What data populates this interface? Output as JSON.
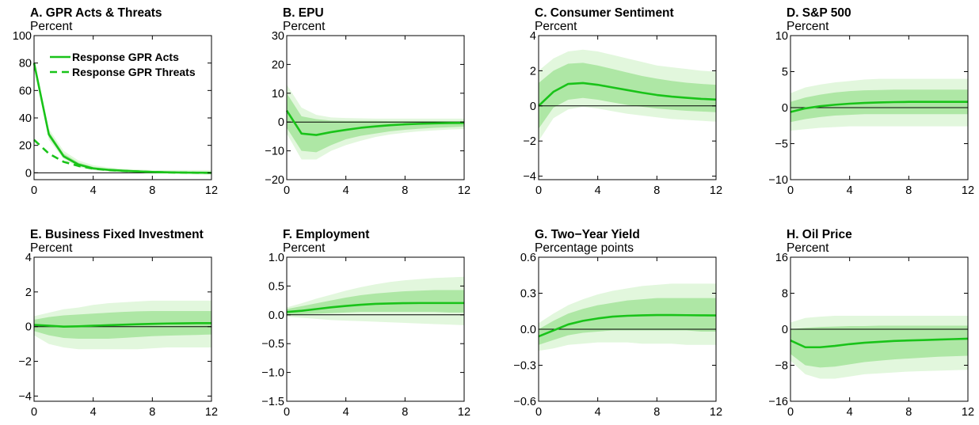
{
  "colors": {
    "line": "#19c319",
    "band_outer": "#e2f7dd",
    "band_inner": "#aee7a5",
    "axis": "#000000",
    "zero_line": "#000000"
  },
  "chart_data": [
    {
      "type": "line",
      "title": "A. GPR Acts & Threats",
      "subtitle": "Percent",
      "x": [
        0,
        1,
        2,
        3,
        4,
        5,
        6,
        7,
        8,
        9,
        10,
        11,
        12
      ],
      "xticks": [
        0,
        4,
        8,
        12
      ],
      "xlim": [
        0,
        12
      ],
      "ylim": [
        -5,
        100
      ],
      "yticks": [
        0,
        20,
        40,
        60,
        80,
        100
      ],
      "ytick_labels": [
        "0",
        "20",
        "40",
        "60",
        "80",
        "100"
      ],
      "legend": {
        "placement": "top-left",
        "entries": [
          "Response GPR Acts",
          "Response GPR Threats"
        ]
      },
      "series": [
        {
          "name": "Response GPR Acts",
          "style": "solid",
          "values": [
            80,
            28,
            12,
            6,
            3.2,
            2.2,
            1.5,
            1,
            0.6,
            0.4,
            0.2,
            0.1,
            0
          ]
        },
        {
          "name": "Response GPR Threats",
          "style": "dashed",
          "values": [
            24,
            14,
            8,
            5,
            3,
            2,
            1.4,
            1,
            0.6,
            0.3,
            0.2,
            0,
            0
          ]
        }
      ],
      "band_outer": {
        "lower": [
          80,
          24,
          10,
          4,
          2,
          1,
          0.5,
          0,
          -0.5,
          -0.8,
          -1,
          -1.2,
          -1.5
        ],
        "upper": [
          80,
          32,
          16,
          9,
          5.5,
          4,
          3,
          2.5,
          2,
          2,
          2,
          2,
          2
        ]
      },
      "band_inner": {
        "lower": [
          80,
          26,
          11,
          5,
          2.6,
          1.6,
          1,
          0.5,
          0.2,
          0,
          -0.2,
          -0.4,
          -0.6
        ],
        "upper": [
          80,
          30,
          14,
          7.5,
          4.2,
          3,
          2.2,
          1.6,
          1.2,
          1,
          0.8,
          0.7,
          0.6
        ]
      }
    },
    {
      "type": "line",
      "title": "B. EPU",
      "subtitle": "Percent",
      "x": [
        0,
        1,
        2,
        3,
        4,
        5,
        6,
        7,
        8,
        9,
        10,
        11,
        12
      ],
      "xticks": [
        0,
        4,
        8,
        12
      ],
      "xlim": [
        0,
        12
      ],
      "ylim": [
        -20,
        30
      ],
      "yticks": [
        -20,
        -10,
        0,
        10,
        20,
        30
      ],
      "ytick_labels": [
        "−20",
        "−10",
        "0",
        "10",
        "20",
        "30"
      ],
      "series": [
        {
          "name": "",
          "style": "solid",
          "values": [
            4,
            -4,
            -4.5,
            -3.5,
            -2.7,
            -2,
            -1.5,
            -1.1,
            -0.8,
            -0.6,
            -0.45,
            -0.35,
            -0.3
          ]
        }
      ],
      "band_outer": {
        "lower": [
          -4,
          -13,
          -13,
          -10,
          -8,
          -6.5,
          -5.2,
          -4.3,
          -3.7,
          -3.2,
          -2.9,
          -2.6,
          -2.4
        ],
        "upper": [
          13,
          5,
          2.5,
          1.6,
          1.4,
          1.3,
          1.2,
          1.2,
          1.2,
          1.2,
          1.2,
          1.2,
          1.2
        ]
      },
      "band_inner": {
        "lower": [
          -2,
          -10,
          -10.5,
          -8,
          -6,
          -4.8,
          -4,
          -3.2,
          -2.7,
          -2.3,
          -2,
          -1.8,
          -1.6
        ],
        "upper": [
          10,
          2,
          1,
          0.5,
          0.4,
          0.4,
          0.4,
          0.3,
          0.3,
          0.3,
          0.3,
          0.3,
          0.3
        ]
      }
    },
    {
      "type": "line",
      "title": "C. Consumer Sentiment",
      "subtitle": "Percent",
      "x": [
        0,
        1,
        2,
        3,
        4,
        5,
        6,
        7,
        8,
        9,
        10,
        11,
        12
      ],
      "xticks": [
        0,
        4,
        8,
        12
      ],
      "xlim": [
        0,
        12
      ],
      "ylim": [
        -4.2,
        4
      ],
      "yticks": [
        -4,
        -2,
        0,
        2,
        4
      ],
      "ytick_labels": [
        "−4",
        "−2",
        "0",
        "2",
        "4"
      ],
      "series": [
        {
          "name": "",
          "style": "solid",
          "values": [
            0,
            0.8,
            1.25,
            1.3,
            1.2,
            1.05,
            0.9,
            0.75,
            0.62,
            0.53,
            0.46,
            0.4,
            0.36
          ]
        }
      ],
      "band_outer": {
        "lower": [
          -2,
          -0.7,
          -0.2,
          -0.05,
          -0.15,
          -0.3,
          -0.45,
          -0.55,
          -0.65,
          -0.75,
          -0.8,
          -0.85,
          -0.9
        ],
        "upper": [
          2,
          2.7,
          3.1,
          3.2,
          3.1,
          2.9,
          2.7,
          2.5,
          2.3,
          2.2,
          2.1,
          2,
          1.95
        ]
      },
      "band_inner": {
        "lower": [
          -1.3,
          -0.1,
          0.35,
          0.45,
          0.35,
          0.2,
          0.05,
          -0.05,
          -0.15,
          -0.22,
          -0.28,
          -0.32,
          -0.36
        ],
        "upper": [
          1.3,
          2,
          2.4,
          2.45,
          2.3,
          2.1,
          1.9,
          1.7,
          1.55,
          1.42,
          1.32,
          1.25,
          1.2
        ]
      }
    },
    {
      "type": "line",
      "title": "D. S&P 500",
      "subtitle": "Percent",
      "x": [
        0,
        1,
        2,
        3,
        4,
        5,
        6,
        7,
        8,
        9,
        10,
        11,
        12
      ],
      "xticks": [
        0,
        4,
        8,
        12
      ],
      "xlim": [
        0,
        12
      ],
      "ylim": [
        -10,
        10
      ],
      "yticks": [
        -10,
        -5,
        0,
        5,
        10
      ],
      "ytick_labels": [
        "−10",
        "−5",
        "0",
        "5",
        "10"
      ],
      "series": [
        {
          "name": "",
          "style": "solid",
          "values": [
            -0.6,
            -0.1,
            0.2,
            0.4,
            0.55,
            0.65,
            0.72,
            0.77,
            0.8,
            0.8,
            0.8,
            0.8,
            0.8
          ]
        }
      ],
      "band_outer": {
        "lower": [
          -3.2,
          -3,
          -2.8,
          -2.7,
          -2.6,
          -2.6,
          -2.6,
          -2.6,
          -2.6,
          -2.6,
          -2.6,
          -2.6,
          -2.6
        ],
        "upper": [
          2,
          2.8,
          3.2,
          3.5,
          3.7,
          3.9,
          4,
          4,
          4,
          4,
          4,
          4,
          4
        ]
      },
      "band_inner": {
        "lower": [
          -2,
          -1.6,
          -1.3,
          -1.1,
          -1,
          -0.9,
          -0.9,
          -0.9,
          -0.9,
          -0.9,
          -0.9,
          -0.9,
          -0.9
        ],
        "upper": [
          0.8,
          1.4,
          1.8,
          2.1,
          2.3,
          2.4,
          2.45,
          2.5,
          2.5,
          2.5,
          2.5,
          2.5,
          2.5
        ]
      }
    },
    {
      "type": "line",
      "title": "E. Business Fixed Investment",
      "subtitle": "Percent",
      "x": [
        0,
        1,
        2,
        3,
        4,
        5,
        6,
        7,
        8,
        9,
        10,
        11,
        12
      ],
      "xticks": [
        0,
        4,
        8,
        12
      ],
      "xlim": [
        0,
        12
      ],
      "ylim": [
        -4.3,
        4
      ],
      "yticks": [
        -4,
        -2,
        0,
        2,
        4
      ],
      "ytick_labels": [
        "−4",
        "−2",
        "0",
        "2",
        "4"
      ],
      "series": [
        {
          "name": "",
          "style": "solid",
          "values": [
            0.1,
            0.05,
            0,
            0.02,
            0.05,
            0.08,
            0.11,
            0.14,
            0.16,
            0.18,
            0.19,
            0.2,
            0.2
          ]
        }
      ],
      "band_outer": {
        "lower": [
          -0.5,
          -1,
          -1.2,
          -1.3,
          -1.3,
          -1.3,
          -1.3,
          -1.3,
          -1.25,
          -1.2,
          -1.2,
          -1.2,
          -1.2
        ],
        "upper": [
          0.6,
          0.8,
          1,
          1.1,
          1.25,
          1.35,
          1.4,
          1.45,
          1.5,
          1.5,
          1.5,
          1.5,
          1.5
        ]
      },
      "band_inner": {
        "lower": [
          -0.25,
          -0.5,
          -0.65,
          -0.7,
          -0.7,
          -0.7,
          -0.65,
          -0.6,
          -0.55,
          -0.52,
          -0.5,
          -0.48,
          -0.45
        ]
      },
      "band_inner_upper": [
        0.4,
        0.55,
        0.65,
        0.7,
        0.75,
        0.8,
        0.85,
        0.88,
        0.9,
        0.9,
        0.9,
        0.9,
        0.9
      ]
    },
    {
      "type": "line",
      "title": "F. Employment",
      "subtitle": "Percent",
      "x": [
        0,
        1,
        2,
        3,
        4,
        5,
        6,
        7,
        8,
        9,
        10,
        11,
        12
      ],
      "xticks": [
        0,
        4,
        8,
        12
      ],
      "xlim": [
        0,
        12
      ],
      "ylim": [
        -1.5,
        1.0
      ],
      "yticks": [
        -1.5,
        -1.0,
        -0.5,
        0.0,
        0.5,
        1.0
      ],
      "ytick_labels": [
        "−1.5",
        "−1.0",
        "−0.5",
        "0.0",
        "0.5",
        "1.0"
      ],
      "series": [
        {
          "name": "",
          "style": "solid",
          "values": [
            0.05,
            0.07,
            0.1,
            0.13,
            0.155,
            0.175,
            0.19,
            0.198,
            0.203,
            0.205,
            0.205,
            0.205,
            0.205
          ]
        }
      ],
      "band_outer": {
        "lower": [
          -0.03,
          -0.05,
          -0.07,
          -0.09,
          -0.1,
          -0.11,
          -0.12,
          -0.13,
          -0.14,
          -0.15,
          -0.16,
          -0.17,
          -0.18
        ],
        "upper": [
          0.13,
          0.2,
          0.28,
          0.35,
          0.42,
          0.48,
          0.53,
          0.57,
          0.6,
          0.62,
          0.64,
          0.65,
          0.66
        ]
      },
      "band_inner": {
        "lower": [
          0,
          0.01,
          0.02,
          0.03,
          0.04,
          0.05,
          0.05,
          0.05,
          0.05,
          0.05,
          0.05,
          0.04,
          0.04
        ],
        "upper": [
          0.1,
          0.15,
          0.2,
          0.25,
          0.3,
          0.34,
          0.37,
          0.39,
          0.41,
          0.42,
          0.43,
          0.43,
          0.43
        ]
      }
    },
    {
      "type": "line",
      "title": "G. Two−Year Yield",
      "subtitle": "Percentage points",
      "x": [
        0,
        1,
        2,
        3,
        4,
        5,
        6,
        7,
        8,
        9,
        10,
        11,
        12
      ],
      "xticks": [
        0,
        4,
        8,
        12
      ],
      "xlim": [
        0,
        12
      ],
      "ylim": [
        -0.6,
        0.6
      ],
      "yticks": [
        -0.6,
        -0.3,
        0.0,
        0.3,
        0.6
      ],
      "ytick_labels": [
        "−0.6",
        "−0.3",
        "0.0",
        "0.3",
        "0.6"
      ],
      "series": [
        {
          "name": "",
          "style": "solid",
          "values": [
            -0.06,
            -0.01,
            0.04,
            0.07,
            0.09,
            0.105,
            0.112,
            0.116,
            0.118,
            0.118,
            0.117,
            0.116,
            0.115
          ]
        }
      ],
      "band_outer": {
        "lower": [
          -0.18,
          -0.16,
          -0.13,
          -0.12,
          -0.11,
          -0.11,
          -0.11,
          -0.12,
          -0.12,
          -0.12,
          -0.13,
          -0.13,
          -0.13
        ],
        "upper": [
          0.05,
          0.13,
          0.2,
          0.25,
          0.29,
          0.32,
          0.34,
          0.36,
          0.37,
          0.38,
          0.38,
          0.38,
          0.38
        ]
      },
      "band_inner": {
        "lower": [
          -0.13,
          -0.09,
          -0.05,
          -0.03,
          -0.02,
          -0.01,
          -0.01,
          -0.01,
          -0.01,
          -0.01,
          -0.01,
          -0.02,
          -0.02
        ],
        "upper": [
          0,
          0.07,
          0.13,
          0.17,
          0.2,
          0.22,
          0.24,
          0.25,
          0.26,
          0.26,
          0.26,
          0.26,
          0.26
        ]
      }
    },
    {
      "type": "line",
      "title": "H. Oil Price",
      "subtitle": "Percent",
      "x": [
        0,
        1,
        2,
        3,
        4,
        5,
        6,
        7,
        8,
        9,
        10,
        11,
        12
      ],
      "xticks": [
        0,
        4,
        8,
        12
      ],
      "xlim": [
        0,
        12
      ],
      "ylim": [
        -16,
        16
      ],
      "yticks": [
        -16,
        -8,
        0,
        8,
        16
      ],
      "ytick_labels": [
        "−16",
        "−8",
        "0",
        "8",
        "16"
      ],
      "series": [
        {
          "name": "",
          "style": "solid",
          "values": [
            -2.5,
            -4,
            -4,
            -3.7,
            -3.3,
            -3,
            -2.8,
            -2.6,
            -2.5,
            -2.4,
            -2.3,
            -2.2,
            -2.1
          ]
        }
      ],
      "band_outer": {
        "lower": [
          -7,
          -10,
          -11,
          -11,
          -10.5,
          -10,
          -9.8,
          -9.6,
          -9.4,
          -9.3,
          -9.2,
          -9.1,
          -9
        ],
        "upper": [
          1.5,
          2.5,
          2.8,
          3,
          3,
          3,
          3,
          3,
          3,
          3,
          3,
          3,
          3
        ]
      },
      "band_inner": {
        "lower": [
          -5.5,
          -8,
          -8.5,
          -8.3,
          -7.8,
          -7.3,
          -7,
          -6.7,
          -6.5,
          -6.3,
          -6.1,
          -6,
          -5.9
        ],
        "upper": [
          0,
          0.3,
          0.5,
          0.6,
          0.7,
          0.7,
          0.8,
          0.8,
          0.8,
          0.8,
          0.8,
          0.8,
          0.8
        ]
      }
    }
  ]
}
